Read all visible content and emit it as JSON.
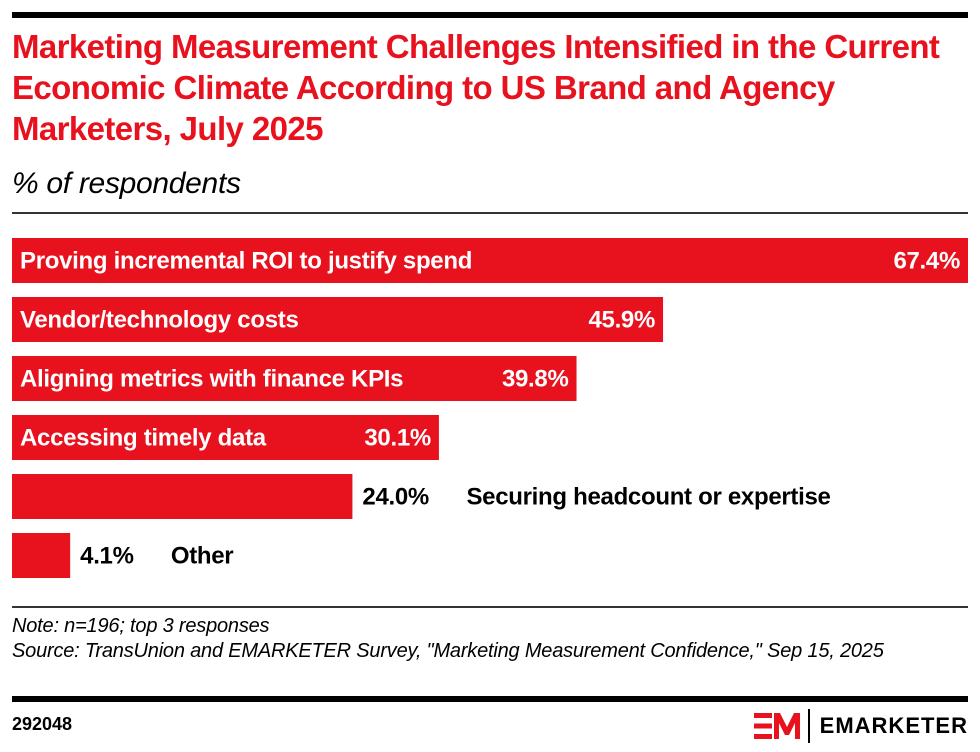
{
  "header": {
    "title": "Marketing Measurement Challenges Intensified in the Current Economic Climate According to US Brand and Agency Marketers, July 2025",
    "subtitle": "% of respondents"
  },
  "chart_data": {
    "type": "bar",
    "orientation": "horizontal",
    "title": "Marketing Measurement Challenges Intensified in the Current Economic Climate According to US Brand and Agency Marketers, July 2025",
    "subtitle": "% of respondents",
    "xlabel": "",
    "ylabel": "",
    "xlim": [
      0,
      67.4
    ],
    "grid": false,
    "bar_color": "#e8111e",
    "categories": [
      "Proving incremental ROI to justify spend",
      "Vendor/technology costs",
      "Aligning metrics with finance KPIs",
      "Accessing timely data",
      "Securing headcount or expertise",
      "Other"
    ],
    "values": [
      67.4,
      45.9,
      39.8,
      30.1,
      24.0,
      4.1
    ],
    "value_labels": [
      "67.4%",
      "45.9%",
      "39.8%",
      "30.1%",
      "24.0%",
      "4.1%"
    ]
  },
  "footer": {
    "note": "Note: n=196; top 3 responses",
    "source": "Source: TransUnion and EMARKETER Survey, \"Marketing Measurement Confidence,\" Sep 15, 2025",
    "chart_id": "292048",
    "brand": "EMARKETER",
    "brand_color": "#e8111e"
  }
}
